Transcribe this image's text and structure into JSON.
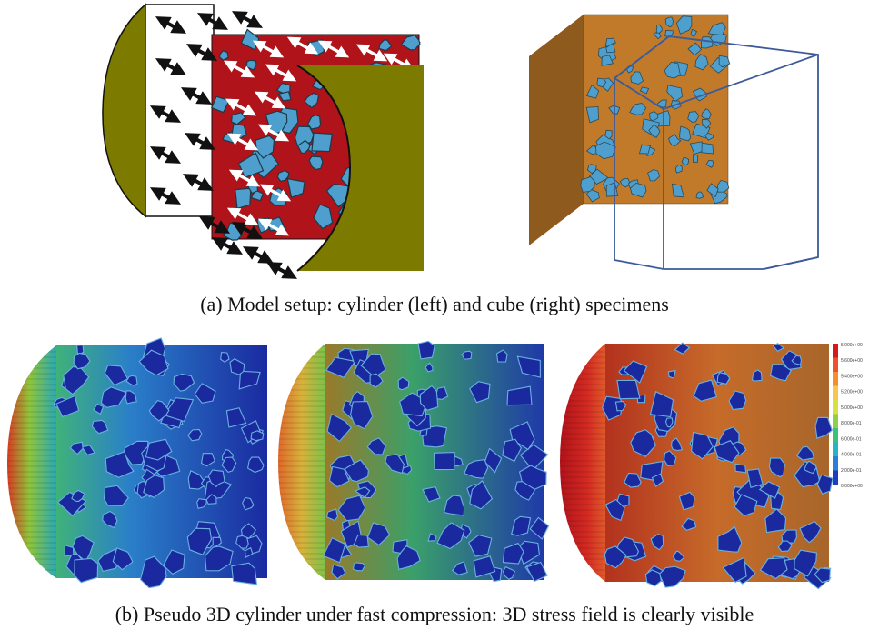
{
  "captions": {
    "a": "(a) Model setup: cylinder (left) and cube (right) specimens",
    "b": "(b) Pseudo 3D cylinder under fast compression: 3D stress field is clearly visible"
  },
  "legend": {
    "labels": [
      "5.000e+00",
      "5.600e+00",
      "5.400e+00",
      "5.200e+00",
      "5.000e+00",
      "8.000e-01",
      "6.000e-01",
      "4.000e-01",
      "2.000e-01",
      "0.000e+00"
    ],
    "colors": [
      "#d7191c",
      "#f0502a",
      "#f88d2c",
      "#f7c64a",
      "#d7e13f",
      "#8fd04a",
      "#3ec07a",
      "#29b3c6",
      "#2a7fd9",
      "#1d3fbf"
    ]
  },
  "colors": {
    "olive": "#7d7a00",
    "matrix_red": "#b0141a",
    "aggregate_blue": "#4f9fce",
    "cube_brown": "#c07a2a",
    "frame_blue": "#3d5a9a",
    "field_deep_blue": "#1a2a9e"
  },
  "icons": [
    "arrow-black",
    "arrow-white",
    "cube-frame"
  ]
}
